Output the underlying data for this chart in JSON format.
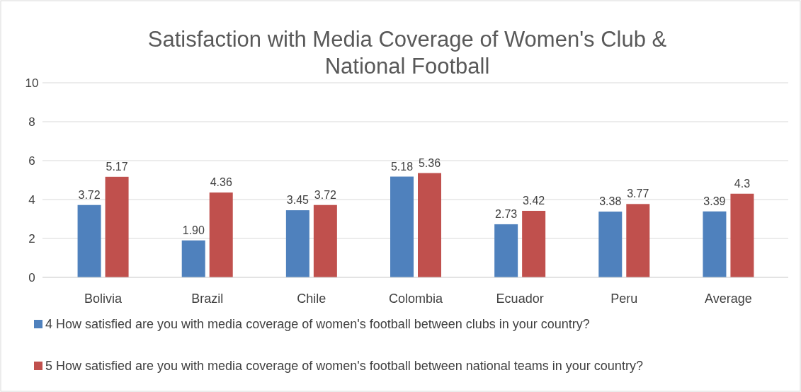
{
  "chart_data": {
    "type": "bar",
    "title": "Satisfaction with Media Coverage of Women's Club & National Football",
    "categories": [
      "Bolivia",
      "Brazil",
      "Chile",
      "Colombia",
      "Ecuador",
      "Peru",
      "Average"
    ],
    "series": [
      {
        "name": "4 How satisfied are you with media coverage of women's football between clubs in your country?",
        "color": "#4f81bd",
        "values": [
          3.72,
          1.9,
          3.45,
          5.18,
          2.73,
          3.38,
          3.39
        ],
        "value_labels": [
          "3.72",
          "1.90",
          "3.45",
          "5.18",
          "2.73",
          "3.38",
          "3.39"
        ]
      },
      {
        "name": "5 How satisfied are you with media coverage of women's football between national teams in your country?",
        "color": "#c0504d",
        "values": [
          5.17,
          4.36,
          3.72,
          5.36,
          3.42,
          3.77,
          4.3
        ],
        "value_labels": [
          "5.17",
          "4.36",
          "3.72",
          "5.36",
          "3.42",
          "3.77",
          "4.3"
        ]
      }
    ],
    "ylim": [
      0,
      10
    ],
    "yticks": [
      0,
      2,
      4,
      6,
      8,
      10
    ],
    "grid": "y",
    "legend": "bottom"
  }
}
